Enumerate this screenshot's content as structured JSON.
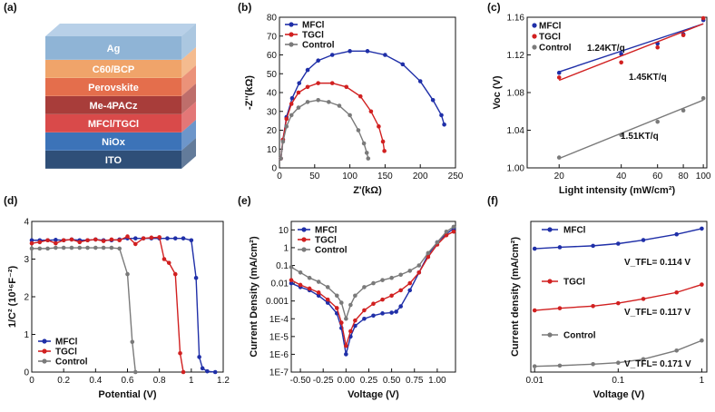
{
  "panels": [
    {
      "id": "a",
      "label": "(a)",
      "type": "diagram",
      "layers": [
        {
          "name": "Ag",
          "color": "#8fb4d6"
        },
        {
          "name": "C60/BCP",
          "color": "#f0a46a"
        },
        {
          "name": "Perovskite",
          "color": "#e46e4c"
        },
        {
          "name": "Me-4PACz",
          "color": "#a83d3a"
        },
        {
          "name": "MFCl/TGCl",
          "color": "#d94a4a"
        },
        {
          "name": "NiOx",
          "color": "#3c73b8"
        },
        {
          "name": "ITO",
          "color": "#2f4f78"
        }
      ]
    },
    {
      "id": "b",
      "label": "(b)",
      "chart_data": {
        "type": "scatter",
        "xlabel": "Z'(kΩ)",
        "ylabel": "-Z''(kΩ)",
        "xlim": [
          0,
          250
        ],
        "ylim": [
          0,
          80
        ],
        "xticks": [
          0,
          50,
          100,
          150,
          200,
          250
        ],
        "yticks": [
          0,
          10,
          20,
          30,
          40,
          50,
          60,
          70,
          80
        ],
        "legend": "top-left",
        "series": [
          {
            "name": "MFCl",
            "color": "#1f2fa8",
            "marker": "circle",
            "x": [
              2,
              5,
              10,
              18,
              28,
              40,
              55,
              75,
              100,
              125,
              150,
              175,
              200,
              218,
              230,
              234
            ],
            "y": [
              5,
              15,
              27,
              37,
              45,
              52,
              57,
              60,
              62,
              62,
              60,
              55,
              46,
              36,
              28,
              23
            ]
          },
          {
            "name": "TGCl",
            "color": "#d12020",
            "marker": "circle",
            "x": [
              2,
              5,
              10,
              17,
              27,
              40,
              55,
              75,
              95,
              115,
              130,
              141,
              147,
              149
            ],
            "y": [
              5,
              15,
              26,
              34,
              40,
              43,
              45,
              45,
              43,
              38,
              30,
              22,
              14,
              9
            ]
          },
          {
            "name": "Control",
            "color": "#7a7a7a",
            "marker": "circle",
            "x": [
              2,
              5,
              10,
              17,
              27,
              40,
              55,
              70,
              85,
              100,
              112,
              120,
              124,
              126
            ],
            "y": [
              5,
              14,
              22,
              28,
              32,
              35,
              36,
              35,
              33,
              28,
              20,
              13,
              8,
              5
            ]
          }
        ]
      }
    },
    {
      "id": "c",
      "label": "(c)",
      "chart_data": {
        "type": "scatter",
        "xlabel": "Light intensity (mW/cm²)",
        "ylabel": "Voc (V)",
        "xscale": "log",
        "xlim": [
          14,
          104
        ],
        "ylim": [
          1.0,
          1.16
        ],
        "xticks": [
          20,
          40,
          60,
          80,
          100
        ],
        "yticks": [
          1.0,
          1.04,
          1.08,
          1.12,
          1.16
        ],
        "legend": "top-left",
        "annotations": [
          "1.24KT/q",
          "1.45KT/q",
          "1.51KT/q"
        ],
        "series": [
          {
            "name": "MFCl",
            "color": "#1f2fa8",
            "marker": "circle",
            "x": [
              20,
              40,
              60,
              80,
              100
            ],
            "y": [
              1.101,
              1.121,
              1.132,
              1.142,
              1.157
            ],
            "fit": [
              1.102,
              1.153
            ]
          },
          {
            "name": "TGCl",
            "color": "#d12020",
            "marker": "circle",
            "x": [
              20,
              40,
              60,
              80,
              100
            ],
            "y": [
              1.096,
              1.112,
              1.128,
              1.141,
              1.159
            ],
            "fit": [
              1.093,
              1.153
            ]
          },
          {
            "name": "Control",
            "color": "#7a7a7a",
            "marker": "circle",
            "x": [
              20,
              40,
              60,
              80,
              100
            ],
            "y": [
              1.011,
              1.035,
              1.049,
              1.061,
              1.074
            ],
            "fit": [
              1.01,
              1.072
            ]
          }
        ]
      }
    },
    {
      "id": "d",
      "label": "(d)",
      "chart_data": {
        "type": "line",
        "xlabel": "Potential (V)",
        "ylabel": "1/C² (10¹⁶F⁻²)",
        "xlim": [
          0,
          1.2
        ],
        "ylim": [
          0,
          4
        ],
        "xticks": [
          0.0,
          0.2,
          0.4,
          0.6,
          0.8,
          1.0,
          1.2
        ],
        "yticks": [
          0,
          1,
          2,
          3,
          4
        ],
        "legend": "bottom-left",
        "series": [
          {
            "name": "MFCl",
            "color": "#1f2fa8",
            "marker": "circle",
            "x": [
              0.0,
              0.05,
              0.1,
              0.15,
              0.2,
              0.25,
              0.3,
              0.35,
              0.4,
              0.45,
              0.5,
              0.55,
              0.6,
              0.65,
              0.7,
              0.75,
              0.8,
              0.85,
              0.9,
              0.95,
              1.0,
              1.03,
              1.05,
              1.07,
              1.1,
              1.15
            ],
            "y": [
              3.5,
              3.5,
              3.5,
              3.51,
              3.5,
              3.52,
              3.5,
              3.5,
              3.52,
              3.5,
              3.5,
              3.52,
              3.55,
              3.55,
              3.55,
              3.55,
              3.55,
              3.55,
              3.55,
              3.55,
              3.5,
              2.5,
              0.4,
              0.1,
              0.02,
              0.0
            ]
          },
          {
            "name": "TGCl",
            "color": "#d12020",
            "marker": "circle",
            "x": [
              0.0,
              0.05,
              0.1,
              0.15,
              0.2,
              0.25,
              0.3,
              0.35,
              0.4,
              0.45,
              0.5,
              0.55,
              0.6,
              0.65,
              0.7,
              0.75,
              0.8,
              0.83,
              0.86,
              0.9,
              0.93,
              0.95
            ],
            "y": [
              3.42,
              3.45,
              3.5,
              3.42,
              3.5,
              3.52,
              3.45,
              3.5,
              3.52,
              3.48,
              3.52,
              3.5,
              3.6,
              3.4,
              3.55,
              3.57,
              3.58,
              3.0,
              2.9,
              2.6,
              0.5,
              0.0
            ]
          },
          {
            "name": "Control",
            "color": "#7a7a7a",
            "marker": "circle",
            "x": [
              0.0,
              0.05,
              0.1,
              0.15,
              0.2,
              0.25,
              0.3,
              0.35,
              0.4,
              0.45,
              0.5,
              0.55,
              0.6,
              0.63,
              0.65
            ],
            "y": [
              3.28,
              3.28,
              3.28,
              3.3,
              3.3,
              3.3,
              3.3,
              3.3,
              3.3,
              3.3,
              3.3,
              3.28,
              2.6,
              0.8,
              0.0
            ]
          }
        ]
      }
    },
    {
      "id": "e",
      "label": "(e)",
      "chart_data": {
        "type": "line",
        "xlabel": "Voltage (V)",
        "ylabel": "Current Density (mA/cm²)",
        "yscale": "log",
        "xlim": [
          -0.6,
          1.2
        ],
        "ylim": [
          1e-07,
          30
        ],
        "xticks": [
          -0.5,
          -0.25,
          0.0,
          0.25,
          0.5,
          0.75,
          1.0
        ],
        "xticklabels": [
          "-0.50",
          "-0.25",
          "0.00",
          "0.25",
          "0.50",
          "0.75",
          "1.00"
        ],
        "yticks": [
          1e-07,
          1e-06,
          1e-05,
          0.0001,
          0.001,
          0.01,
          0.1,
          1,
          10
        ],
        "yticklabels": [
          "1E-7",
          "1E-6",
          "1E-5",
          "1E-4",
          "0.001",
          "0.01",
          "0.1",
          "1",
          "10"
        ],
        "legend": "top-left",
        "series": [
          {
            "name": "MFCl",
            "color": "#1f2fa8",
            "marker": "circle",
            "x": [
              -0.6,
              -0.5,
              -0.4,
              -0.3,
              -0.2,
              -0.1,
              -0.05,
              0.0,
              0.05,
              0.1,
              0.2,
              0.3,
              0.4,
              0.5,
              0.55,
              0.6,
              0.7,
              0.8,
              0.9,
              1.0,
              1.1,
              1.18
            ],
            "y": [
              0.01,
              0.006,
              0.004,
              0.002,
              0.0008,
              0.0002,
              3e-05,
              1e-06,
              1e-05,
              4e-05,
              0.0001,
              0.00015,
              0.0002,
              0.00022,
              0.00025,
              0.0005,
              0.004,
              0.04,
              0.4,
              2,
              6,
              12
            ]
          },
          {
            "name": "TGCl",
            "color": "#d12020",
            "marker": "circle",
            "x": [
              -0.6,
              -0.5,
              -0.4,
              -0.3,
              -0.2,
              -0.1,
              -0.05,
              0.0,
              0.05,
              0.1,
              0.2,
              0.3,
              0.4,
              0.5,
              0.6,
              0.7,
              0.8,
              0.9,
              1.0,
              1.1,
              1.18
            ],
            "y": [
              0.015,
              0.008,
              0.005,
              0.003,
              0.0012,
              0.0004,
              6e-05,
              3e-06,
              2e-05,
              8e-05,
              0.0003,
              0.0007,
              0.0012,
              0.002,
              0.004,
              0.01,
              0.04,
              0.3,
              1.5,
              5,
              8
            ]
          },
          {
            "name": "Control",
            "color": "#7a7a7a",
            "marker": "circle",
            "x": [
              -0.6,
              -0.5,
              -0.4,
              -0.3,
              -0.2,
              -0.1,
              -0.05,
              0.0,
              0.05,
              0.1,
              0.2,
              0.3,
              0.4,
              0.5,
              0.6,
              0.7,
              0.8,
              0.9,
              1.0,
              1.1,
              1.18
            ],
            "y": [
              0.08,
              0.04,
              0.02,
              0.012,
              0.006,
              0.002,
              0.0008,
              0.0001,
              0.0006,
              0.002,
              0.006,
              0.01,
              0.015,
              0.02,
              0.03,
              0.05,
              0.1,
              0.5,
              2,
              8,
              15
            ]
          }
        ]
      }
    },
    {
      "id": "f",
      "label": "(f)",
      "chart_data": {
        "type": "scatter",
        "xlabel": "Voltage (V)",
        "ylabel": "Current density (mA/cm²)",
        "xscale": "log",
        "xlim": [
          0.009,
          1.15
        ],
        "xticks": [
          0.01,
          0.1,
          1
        ],
        "xticklabels": [
          "0.01",
          "0.1",
          "1"
        ],
        "yticks_shown": false,
        "annotations": [
          "V_TFL= 0.114 V",
          "V_TFL= 0.117 V",
          "V_TFL= 0.171 V"
        ],
        "series": [
          {
            "name": "MFCl",
            "color": "#1f2fa8",
            "marker": "circle",
            "x": [
              0.01,
              0.02,
              0.05,
              0.1,
              0.2,
              0.5,
              1.0
            ],
            "y": [
              0.86,
              0.87,
              0.88,
              0.895,
              0.92,
              0.96,
              1.0
            ]
          },
          {
            "name": "TGCl",
            "color": "#d12020",
            "marker": "circle",
            "x": [
              0.01,
              0.02,
              0.05,
              0.1,
              0.2,
              0.5,
              1.0
            ],
            "y": [
              0.43,
              0.445,
              0.46,
              0.48,
              0.51,
              0.555,
              0.61
            ]
          },
          {
            "name": "Control",
            "color": "#7a7a7a",
            "marker": "circle",
            "x": [
              0.01,
              0.02,
              0.05,
              0.1,
              0.2,
              0.5,
              1.0
            ],
            "y": [
              0.04,
              0.045,
              0.055,
              0.065,
              0.09,
              0.15,
              0.22
            ]
          }
        ]
      }
    }
  ]
}
